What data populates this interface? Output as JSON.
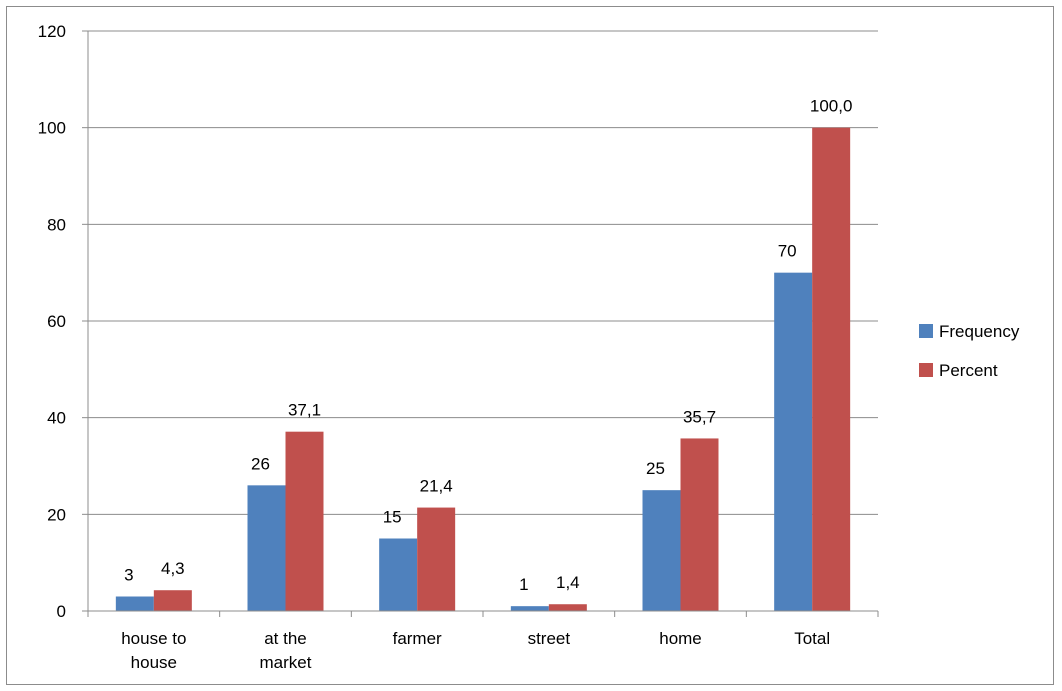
{
  "chart_data": {
    "type": "bar",
    "categories": [
      [
        "house to",
        "house"
      ],
      [
        "at the",
        "market"
      ],
      [
        "farmer"
      ],
      [
        "street"
      ],
      [
        "home"
      ],
      [
        "Total"
      ]
    ],
    "series": [
      {
        "name": "Frequency",
        "color": "#4F81BD",
        "values": [
          3,
          26,
          15,
          1,
          25,
          70
        ],
        "labels": [
          "3",
          "26",
          "15",
          "1",
          "25",
          "70"
        ]
      },
      {
        "name": "Percent",
        "color": "#C0504D",
        "values": [
          4.3,
          37.1,
          21.4,
          1.4,
          35.7,
          100.0
        ],
        "labels": [
          "4,3",
          "37,1",
          "21,4",
          "1,4",
          "35,7",
          "100,0"
        ]
      }
    ],
    "ylim": [
      0,
      120
    ],
    "yticks": [
      0,
      20,
      40,
      60,
      80,
      100,
      120
    ],
    "grid": true,
    "legend_position": "right"
  }
}
